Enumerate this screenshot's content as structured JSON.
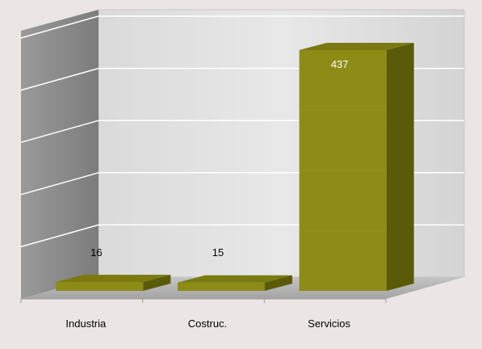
{
  "chart_data": {
    "type": "bar",
    "categories": [
      "Industria",
      "Costruc.",
      "Servicios"
    ],
    "values": [
      16,
      15,
      437
    ],
    "data_labels": [
      "16",
      "15",
      "437"
    ],
    "title": "",
    "xlabel": "",
    "ylabel": "",
    "ylim": [
      0,
      500
    ],
    "grid": true,
    "legend": "none",
    "style": "3d-column"
  },
  "colors": {
    "background": "#ebe6e5",
    "bar_front": "#8c8c16",
    "bar_top": "#7a7a10",
    "bar_side": "#5a5a08",
    "back_wall": "#d8d8d8",
    "side_wall": "#8a8a8a",
    "floor": "#b4b4b4",
    "gridline": "#ffffff"
  }
}
